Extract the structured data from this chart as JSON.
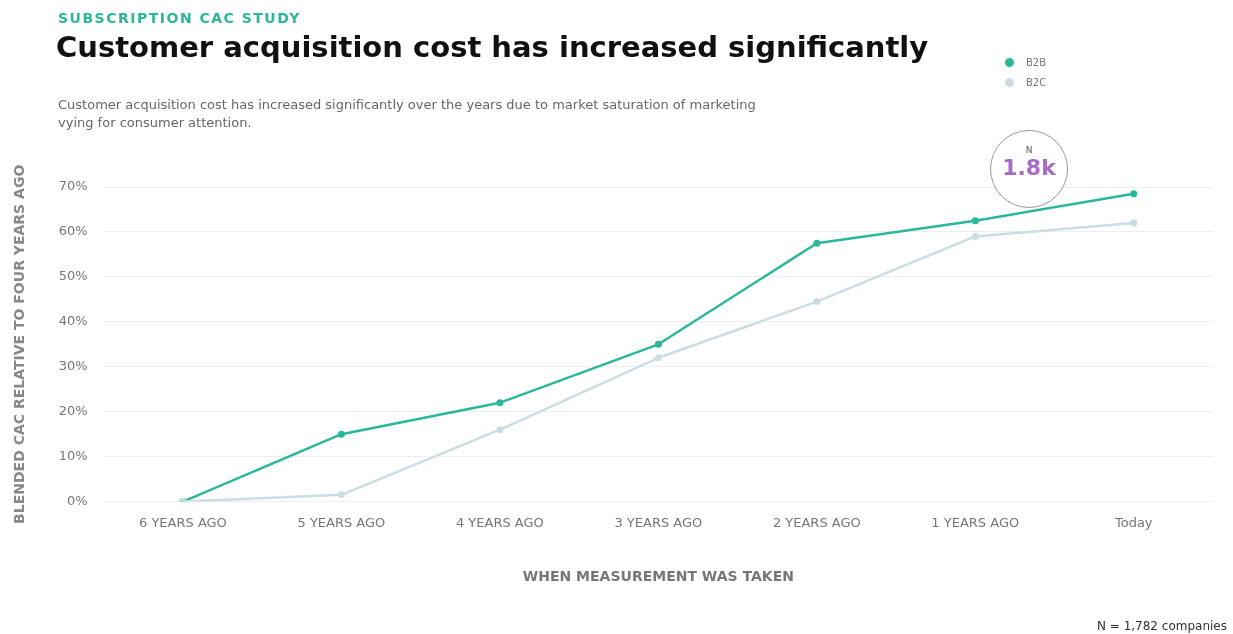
{
  "chart_data": {
    "type": "line",
    "title": "Customer acquisition cost has increased significantly",
    "subtitle": "Customer acquisition cost has increased significantly over the years due to market saturation of marketing vying for consumer attention.",
    "xlabel": "WHEN MEASUREMENT WAS TAKEN",
    "ylabel": "BLENDED CAC RELATIVE TO FOUR YEARS AGO",
    "annotations": [
      "SUBSCRIPTION CAC STUDY",
      "N",
      "1.8k",
      "N = 1,782 companies"
    ],
    "categories": [
      "6 YEARS AGO",
      "5 YEARS AGO",
      "4 YEARS AGO",
      "3 YEARS AGO",
      "2 YEARS AGO",
      "1 YEARS AGO",
      "Today"
    ],
    "series": [
      {
        "name": "B2B",
        "color": "#2bb89a",
        "values": [
          0,
          15,
          22,
          35,
          57.5,
          62.5,
          68.5
        ]
      },
      {
        "name": "B2C",
        "color": "#c9dde3",
        "values": [
          0,
          1.5,
          16,
          32,
          44.5,
          59,
          62
        ]
      }
    ],
    "ylim": [
      0,
      70
    ],
    "yticks": [
      {
        "value": 0,
        "label": "0%"
      },
      {
        "value": 10,
        "label": "10%"
      },
      {
        "value": 20,
        "label": "20%"
      },
      {
        "value": 30,
        "label": "30%"
      },
      {
        "value": 40,
        "label": "40%"
      },
      {
        "value": 50,
        "label": "50%"
      },
      {
        "value": 60,
        "label": "60%"
      },
      {
        "value": 70,
        "label": "70%"
      }
    ],
    "grid": "y",
    "legend": "top right",
    "marker": "circle",
    "line_style": "solid"
  }
}
